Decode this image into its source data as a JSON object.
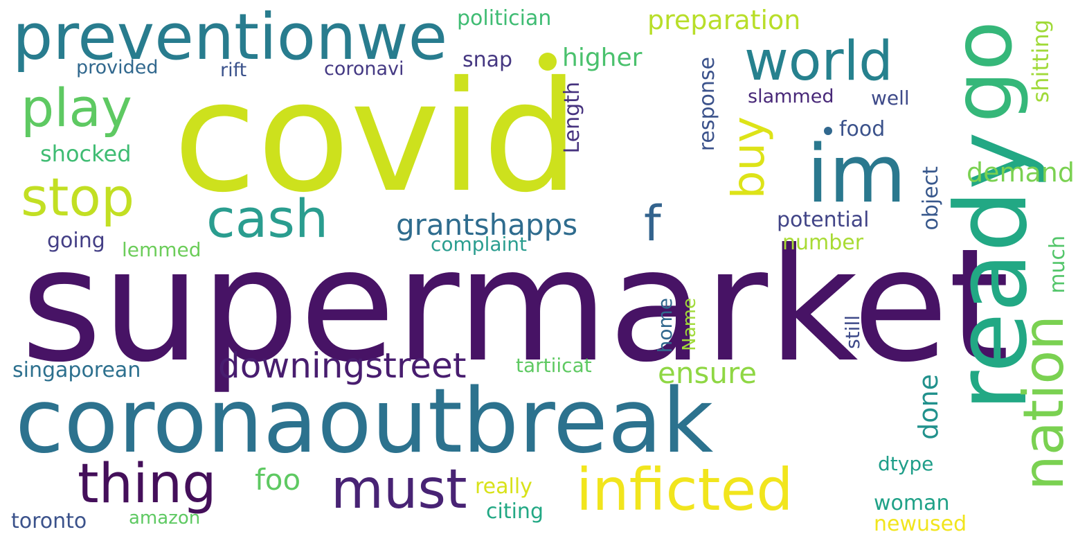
{
  "words": [
    {
      "text": "covid",
      "color": "#cde11d",
      "orientation": "horizontal"
    },
    {
      "text": "supermarket",
      "color": "#471365",
      "orientation": "horizontal"
    },
    {
      "text": "coronaoutbreak",
      "color": "#2c728e",
      "orientation": "horizontal"
    },
    {
      "text": "ready",
      "color": "#22a884",
      "orientation": "vertical"
    },
    {
      "text": "preventionwe",
      "color": "#287c8e",
      "orientation": "horizontal"
    },
    {
      "text": "world",
      "color": "#26818e",
      "orientation": "horizontal"
    },
    {
      "text": "go",
      "color": "#35b779",
      "orientation": "vertical"
    },
    {
      "text": "im",
      "color": "#2a788e",
      "orientation": "horizontal"
    },
    {
      "text": "play",
      "color": "#5ec962",
      "orientation": "horizontal"
    },
    {
      "text": "stop",
      "color": "#c2df23",
      "orientation": "horizontal"
    },
    {
      "text": "cash",
      "color": "#2a9d8f",
      "orientation": "horizontal"
    },
    {
      "text": "buy",
      "color": "#dde318",
      "orientation": "vertical"
    },
    {
      "text": "f",
      "color": "#33638d",
      "orientation": "horizontal"
    },
    {
      "text": "nation",
      "color": "#7ad151",
      "orientation": "vertical"
    },
    {
      "text": "thing",
      "color": "#440f5a",
      "orientation": "horizontal"
    },
    {
      "text": "must",
      "color": "#482374",
      "orientation": "horizontal"
    },
    {
      "text": "inficted",
      "color": "#f1e51d",
      "orientation": "horizontal"
    },
    {
      "text": "downingstreet",
      "color": "#481d6f",
      "orientation": "horizontal"
    },
    {
      "text": "grantshapps",
      "color": "#2f6c8e",
      "orientation": "horizontal"
    },
    {
      "text": "ensure",
      "color": "#8fd744",
      "orientation": "horizontal"
    },
    {
      "text": "foo",
      "color": "#5ec962",
      "orientation": "horizontal"
    },
    {
      "text": "politician",
      "color": "#3fbc73",
      "orientation": "horizontal"
    },
    {
      "text": "preparation",
      "color": "#b8de29",
      "orientation": "horizontal"
    },
    {
      "text": "provided",
      "color": "#31688e",
      "orientation": "horizontal"
    },
    {
      "text": "rift",
      "color": "#3b528b",
      "orientation": "horizontal"
    },
    {
      "text": "coronavi",
      "color": "#443983",
      "orientation": "horizontal"
    },
    {
      "text": "snap",
      "color": "#453781",
      "orientation": "horizontal"
    },
    {
      "text": "higher",
      "color": "#4ac16d",
      "orientation": "horizontal"
    },
    {
      "text": "slammed",
      "color": "#482878",
      "orientation": "horizontal"
    },
    {
      "text": "well",
      "color": "#3e4a89",
      "orientation": "horizontal"
    },
    {
      "text": "food",
      "color": "#3b528b",
      "orientation": "horizontal"
    },
    {
      "text": "shitting",
      "color": "#a0da39",
      "orientation": "vertical"
    },
    {
      "text": "shocked",
      "color": "#3fbc73",
      "orientation": "horizontal"
    },
    {
      "text": "Length",
      "color": "#46327e",
      "orientation": "vertical"
    },
    {
      "text": "response",
      "color": "#3b528b",
      "orientation": "vertical"
    },
    {
      "text": "demand",
      "color": "#7ad151",
      "orientation": "horizontal"
    },
    {
      "text": "object",
      "color": "#38588c",
      "orientation": "vertical"
    },
    {
      "text": "potential",
      "color": "#414487",
      "orientation": "horizontal"
    },
    {
      "text": "number",
      "color": "#a8db34",
      "orientation": "horizontal"
    },
    {
      "text": "going",
      "color": "#433e85",
      "orientation": "horizontal"
    },
    {
      "text": "lemmed",
      "color": "#6ccd5a",
      "orientation": "horizontal"
    },
    {
      "text": "complaint",
      "color": "#2a9d8f",
      "orientation": "horizontal"
    },
    {
      "text": "much",
      "color": "#52c569",
      "orientation": "vertical"
    },
    {
      "text": "home",
      "color": "#31688e",
      "orientation": "vertical"
    },
    {
      "text": "Name",
      "color": "#a0da39",
      "orientation": "vertical"
    },
    {
      "text": "still",
      "color": "#3e4a89",
      "orientation": "vertical"
    },
    {
      "text": "singaporean",
      "color": "#2d708e",
      "orientation": "horizontal"
    },
    {
      "text": "tartiicat",
      "color": "#5ec962",
      "orientation": "horizontal"
    },
    {
      "text": "done",
      "color": "#21918c",
      "orientation": "vertical"
    },
    {
      "text": "dtype",
      "color": "#1f9e89",
      "orientation": "horizontal"
    },
    {
      "text": "really",
      "color": "#d8e219",
      "orientation": "horizontal"
    },
    {
      "text": "citing",
      "color": "#22a884",
      "orientation": "horizontal"
    },
    {
      "text": "woman",
      "color": "#1fa187",
      "orientation": "horizontal"
    },
    {
      "text": "newused",
      "color": "#f1e51d",
      "orientation": "horizontal"
    },
    {
      "text": "toronto",
      "color": "#3b528b",
      "orientation": "horizontal"
    },
    {
      "text": "amazon",
      "color": "#5ec962",
      "orientation": "horizontal"
    }
  ],
  "dots": [
    {
      "color": "#cde11d"
    },
    {
      "color": "#31688e"
    }
  ]
}
